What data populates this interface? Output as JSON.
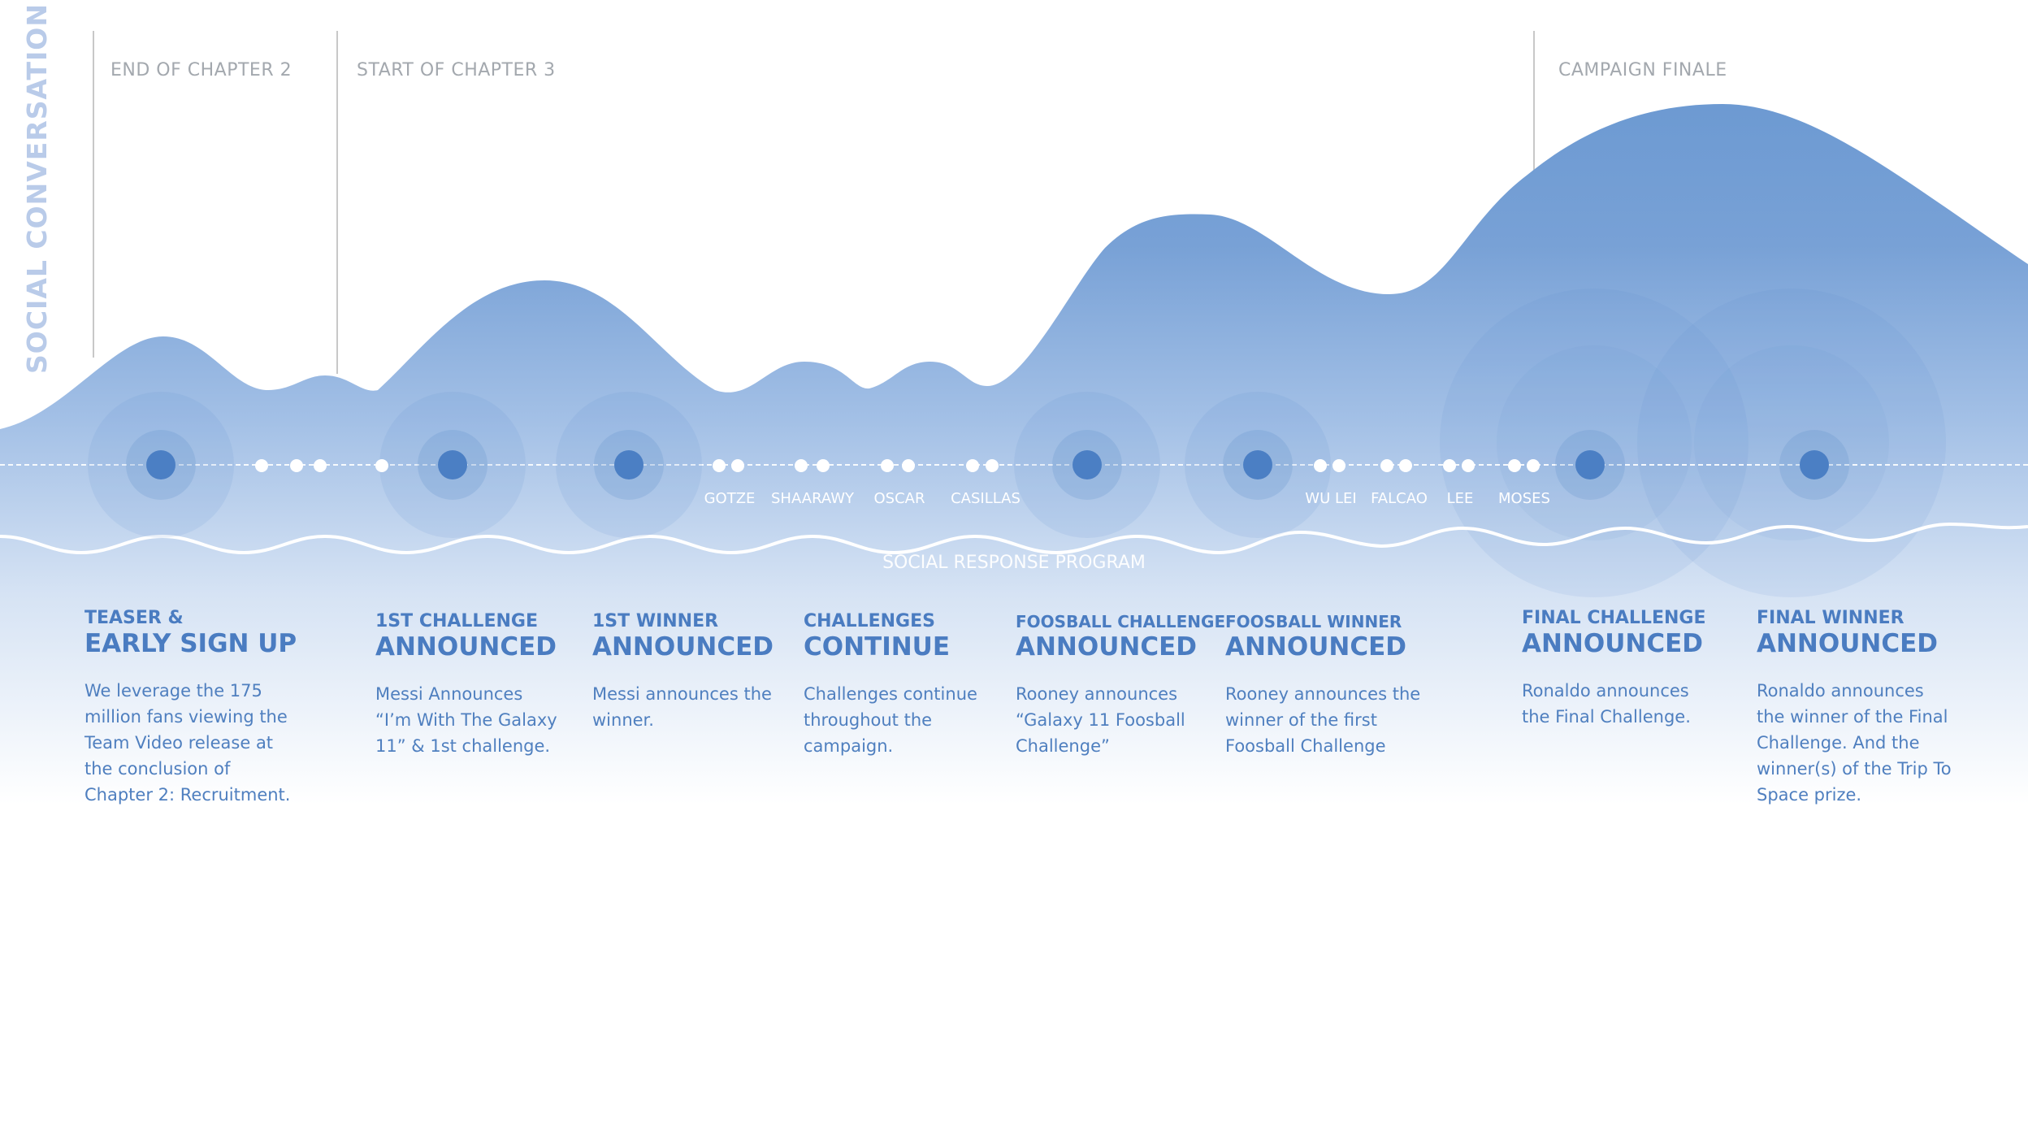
{
  "side_title": "SOCIAL CONVERSATION",
  "chapter_markers": [
    "END OF CHAPTER 2",
    "START OF CHAPTER 3",
    "CAMPAIGN FINALE"
  ],
  "program_label": "SOCIAL RESPONSE PROGRAM",
  "names": [
    "GOTZE",
    "SHAARAWY",
    "OSCAR",
    "CASILLAS",
    "WU LEI",
    "FALCAO",
    "LEE",
    "MOSES"
  ],
  "milestones": [
    {
      "kicker": "TEASER &",
      "headline": "EARLY SIGN UP",
      "body": "We leverage the 175\nmillion fans viewing the\nTeam Video release at\nthe conclusion of\nChapter 2: Recruitment."
    },
    {
      "kicker": "1ST CHALLENGE",
      "headline": "ANNOUNCED",
      "body": "Messi Announces\n“I’m With The Galaxy\n11” &  1st challenge."
    },
    {
      "kicker": "1ST WINNER",
      "headline": "ANNOUNCED",
      "body": "Messi announces the\nwinner."
    },
    {
      "kicker": "CHALLENGES",
      "headline": "CONTINUE",
      "body": "Challenges continue\nthroughout the\ncampaign."
    },
    {
      "kicker": "FOOSBALL CHALLENGE",
      "headline": "ANNOUNCED",
      "body": " Rooney announces\n“Galaxy 11 Foosball\n Challenge”"
    },
    {
      "kicker": "FOOSBALL WINNER",
      "headline": "ANNOUNCED",
      "body": "Rooney announces the\nwinner of the first\nFoosball Challenge"
    },
    {
      "kicker": "FINAL CHALLENGE",
      "headline": "ANNOUNCED",
      "body": "Ronaldo announces\nthe Final Challenge."
    },
    {
      "kicker": "FINAL WINNER",
      "headline": "ANNOUNCED",
      "body": "Ronaldo announces\nthe winner of the Final\nChallenge. And the\nwinner(s) of the Trip To\nSpace prize."
    }
  ],
  "colors": {
    "wave_top": "#6f9bd3",
    "wave_bottom": "#ffffff",
    "event_dot": "#4b7fc4",
    "text_blue": "#4a7cc1",
    "side_title": "#b9cbe9",
    "marker_line": "#c8c8c8",
    "marker_text": "#a3a8ae"
  }
}
